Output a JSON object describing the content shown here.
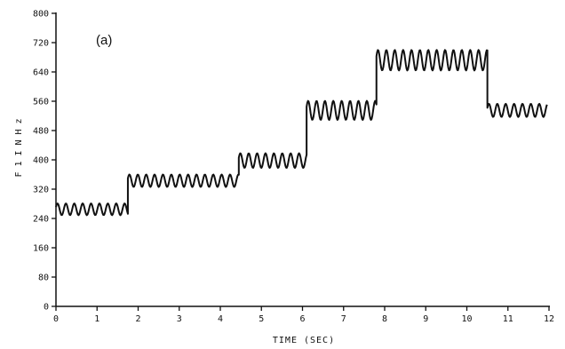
{
  "chart_data": {
    "type": "line",
    "panel_label": "(a)",
    "title": "",
    "xlabel": "TIME (SEC)",
    "ylabel": "F₁ IN Hz",
    "ylabel_lines": [
      "F",
      "1",
      "I",
      "N",
      "H",
      "z"
    ],
    "xlim": [
      0,
      12
    ],
    "ylim": [
      0,
      800
    ],
    "x_ticks": [
      0,
      1,
      2,
      3,
      4,
      5,
      6,
      7,
      8,
      9,
      10,
      11,
      12
    ],
    "x_tick_labels": [
      "0",
      "1",
      "2",
      "3",
      "4",
      "5",
      "6",
      "7",
      "8",
      "9",
      "10",
      "11",
      "12"
    ],
    "y_ticks": [
      0,
      80,
      160,
      240,
      320,
      400,
      480,
      560,
      640,
      720,
      800
    ],
    "y_tick_labels": [
      "0",
      "80",
      "160",
      "240",
      "320",
      "400",
      "480",
      "560",
      "640",
      "720",
      "800"
    ],
    "grid": false,
    "line_color": "#111111",
    "series": [
      {
        "segments": [
          {
            "x_start": 0.0,
            "x_end": 1.75,
            "center": 265,
            "amplitude": 16,
            "cycles_per_sec": 4.9
          },
          {
            "x_start": 1.75,
            "x_end": 4.45,
            "center": 343,
            "amplitude": 17,
            "cycles_per_sec": 4.9
          },
          {
            "x_start": 4.45,
            "x_end": 6.1,
            "center": 398,
            "amplitude": 20,
            "cycles_per_sec": 4.9
          },
          {
            "x_start": 6.1,
            "x_end": 7.8,
            "center": 535,
            "amplitude": 26,
            "cycles_per_sec": 4.9
          },
          {
            "x_start": 7.8,
            "x_end": 10.5,
            "center": 672,
            "amplitude": 28,
            "cycles_per_sec": 4.9
          },
          {
            "x_start": 10.5,
            "x_end": 11.95,
            "center": 535,
            "amplitude": 18,
            "cycles_per_sec": 4.9
          }
        ]
      }
    ]
  }
}
